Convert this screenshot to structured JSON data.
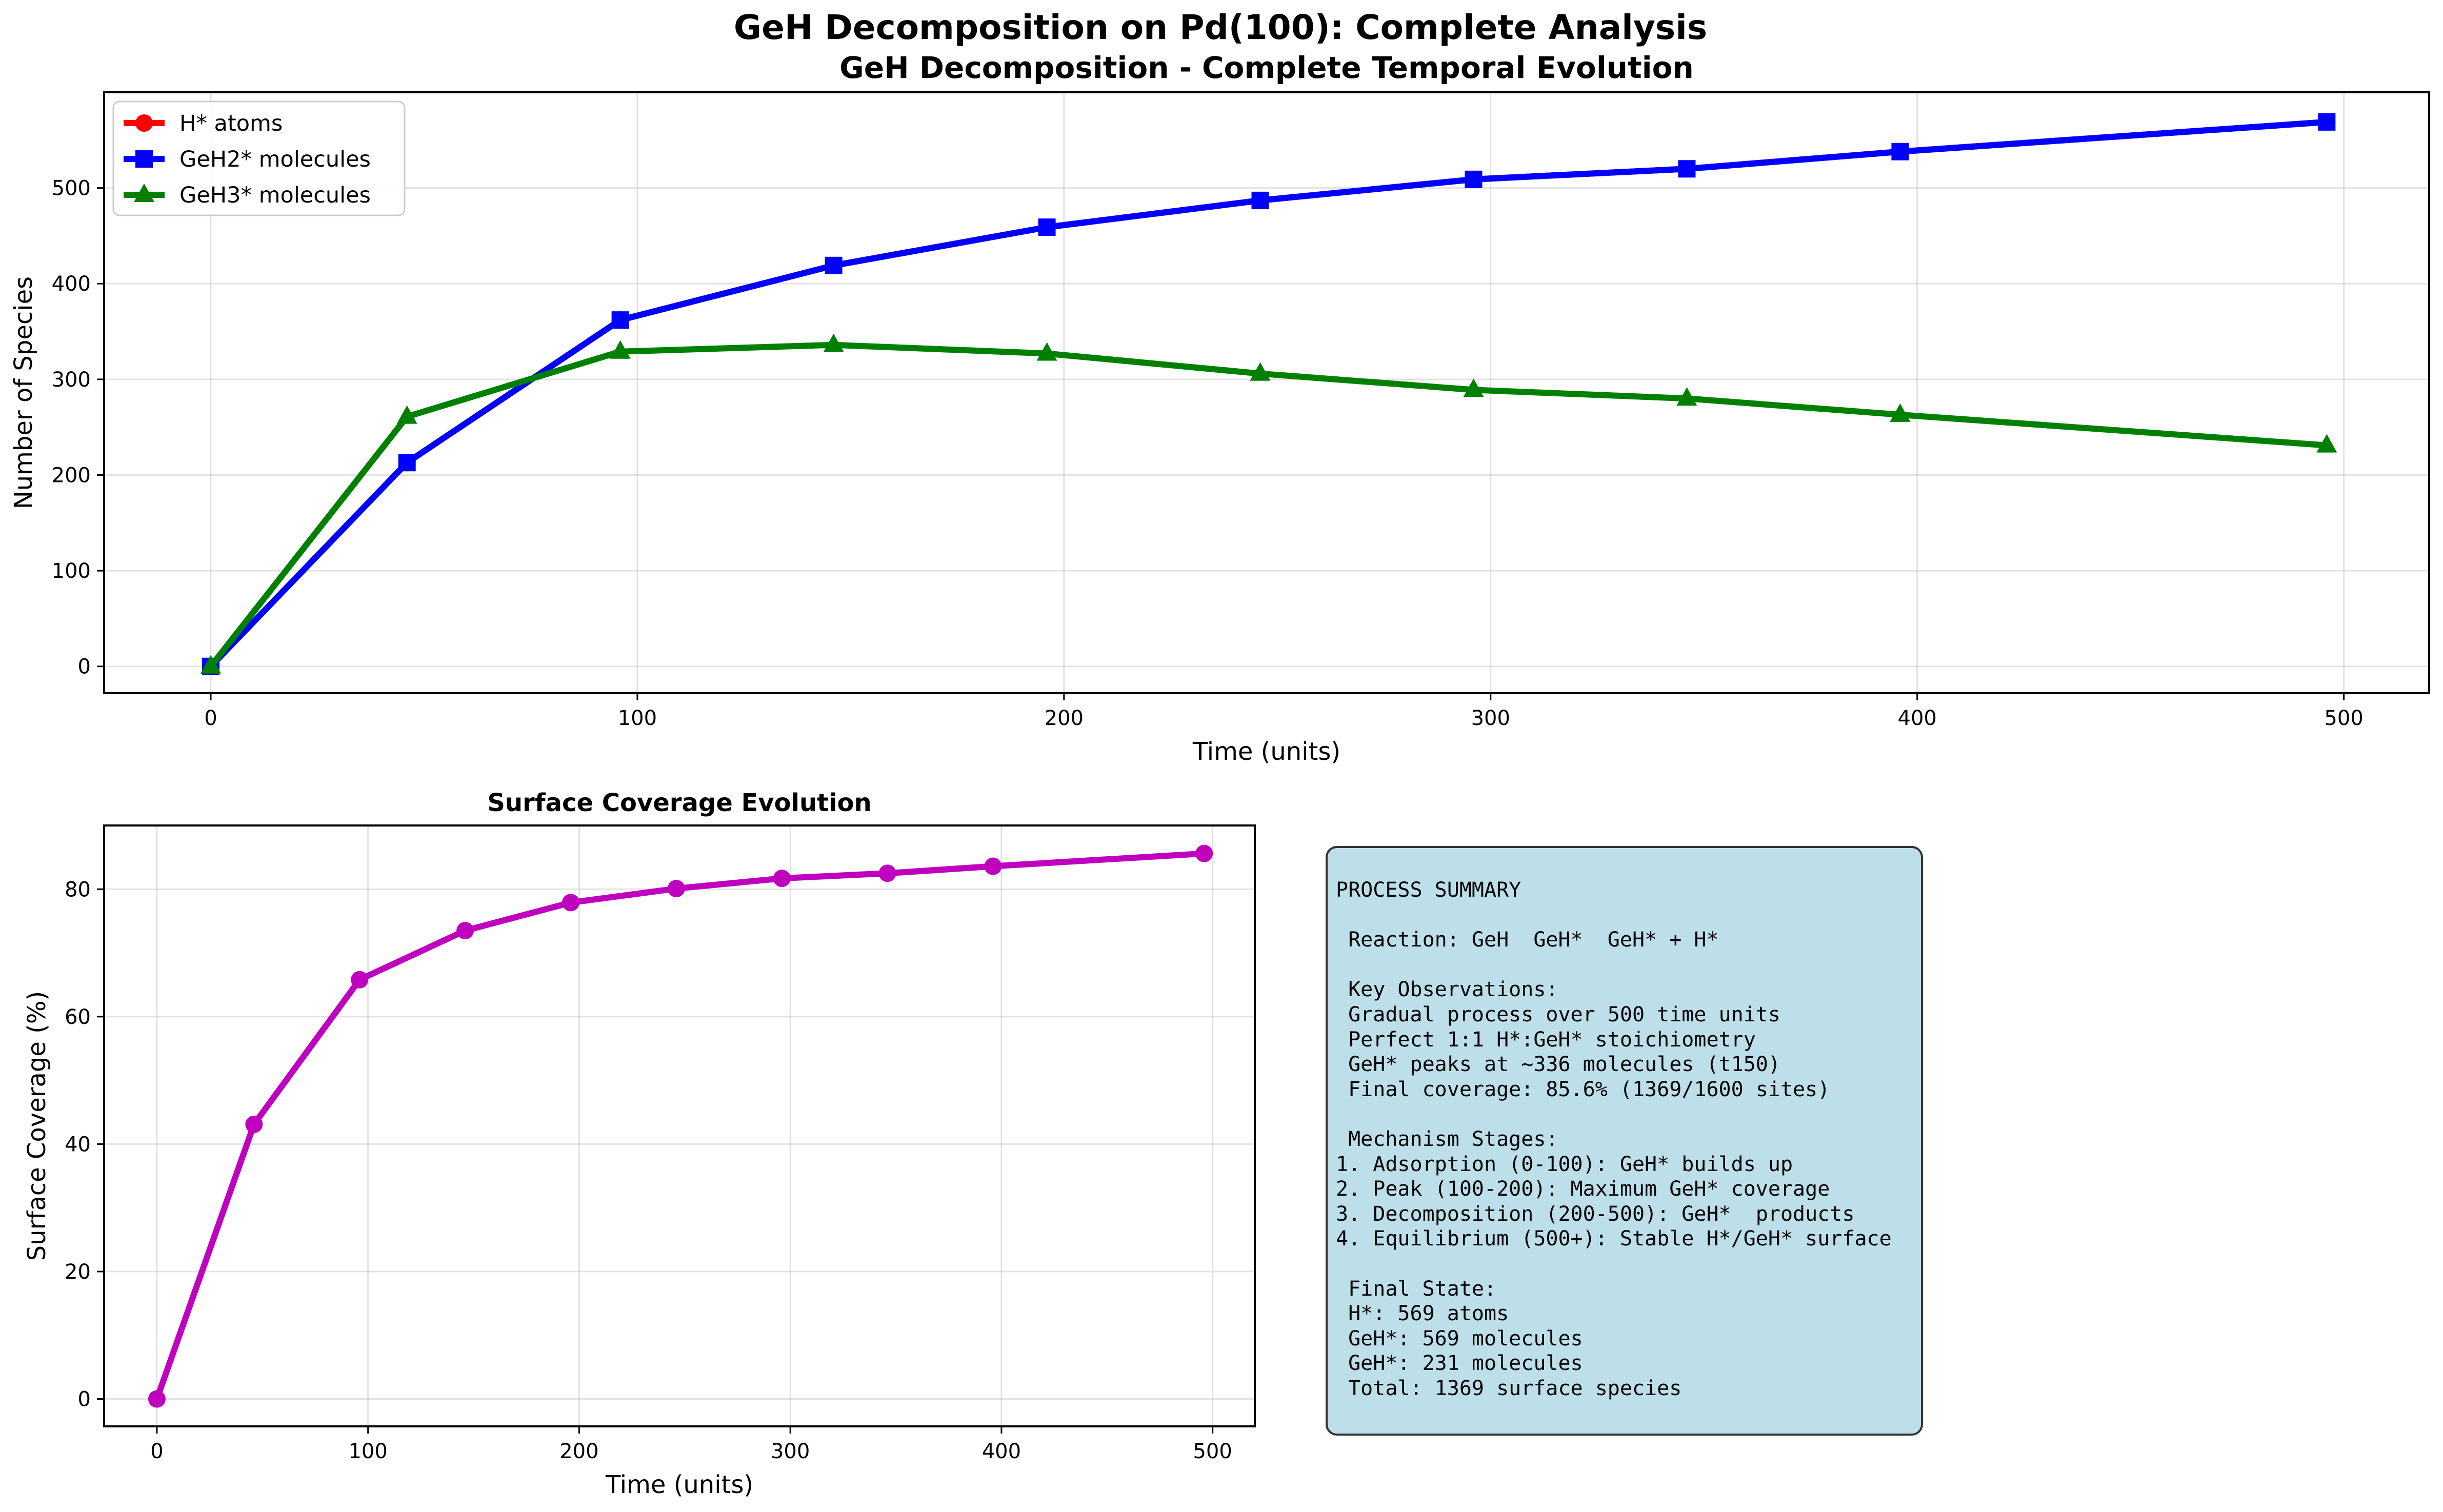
{
  "figure_title": "GeH Decomposition on Pd(100): Complete Analysis",
  "chart_data": [
    {
      "type": "line",
      "title": "GeH Decomposition - Complete Temporal Evolution",
      "xlabel": "Time (units)",
      "ylabel": "Number of Species",
      "xlim": [
        -25,
        520
      ],
      "ylim": [
        -28,
        600
      ],
      "xticks": [
        0,
        100,
        200,
        300,
        400,
        500
      ],
      "yticks": [
        0,
        100,
        200,
        300,
        400,
        500
      ],
      "grid": true,
      "legend": "upper-left",
      "x": [
        0,
        46,
        96,
        146,
        196,
        246,
        296,
        346,
        396,
        496
      ],
      "series": [
        {
          "name": "H* atoms",
          "color": "#ff0000",
          "marker": "circle",
          "values": [
            0,
            213,
            362,
            419,
            459,
            487,
            509,
            520,
            538,
            569
          ]
        },
        {
          "name": "GeH2* molecules",
          "color": "#0000ff",
          "marker": "square",
          "values": [
            0,
            213,
            362,
            419,
            459,
            487,
            509,
            520,
            538,
            569
          ]
        },
        {
          "name": "GeH3* molecules",
          "color": "#008000",
          "marker": "triangle",
          "values": [
            0,
            261,
            329,
            336,
            327,
            306,
            289,
            280,
            263,
            231
          ]
        }
      ]
    },
    {
      "type": "line",
      "title": "Surface Coverage Evolution",
      "xlabel": "Time (units)",
      "ylabel": "Surface Coverage (%)",
      "xlim": [
        -25,
        520
      ],
      "ylim": [
        -4.3,
        90
      ],
      "xticks": [
        0,
        100,
        200,
        300,
        400,
        500
      ],
      "yticks": [
        0,
        20,
        40,
        60,
        80
      ],
      "grid": true,
      "x": [
        0,
        46,
        96,
        146,
        196,
        246,
        296,
        346,
        396,
        496
      ],
      "series": [
        {
          "color": "#bf00bf",
          "marker": "circle",
          "values": [
            0,
            43.1,
            65.8,
            73.5,
            77.9,
            80.1,
            81.7,
            82.5,
            83.6,
            85.6
          ]
        }
      ]
    }
  ],
  "summary": {
    "lines": [
      "PROCESS SUMMARY",
      "",
      " Reaction: GeH  GeH*  GeH* + H*",
      "",
      " Key Observations:",
      " Gradual process over 500 time units",
      " Perfect 1:1 H*:GeH* stoichiometry",
      " GeH* peaks at ~336 molecules (t150)",
      " Final coverage: 85.6% (1369/1600 sites)",
      "",
      " Mechanism Stages:",
      "1. Adsorption (0-100): GeH* builds up",
      "2. Peak (100-200): Maximum GeH* coverage",
      "3. Decomposition (200-500): GeH*  products",
      "4. Equilibrium (500+): Stable H*/GeH* surface",
      "",
      " Final State:",
      " H*: 569 atoms",
      " GeH*: 569 molecules",
      " GeH*: 231 molecules",
      " Total: 1369 surface species"
    ]
  }
}
